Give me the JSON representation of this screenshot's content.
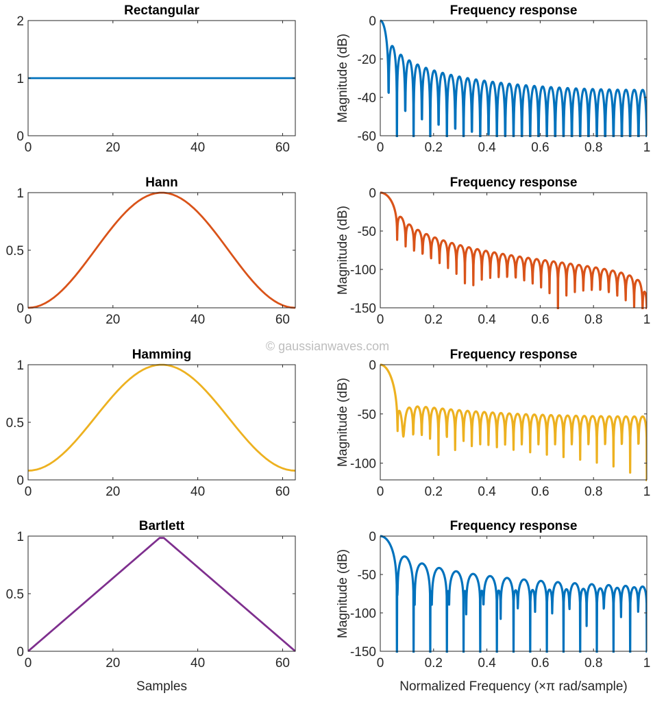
{
  "watermark": "© gaussianwaves.com",
  "chart_data": [
    {
      "type": "line",
      "title": "Rectangular",
      "xlabel": "",
      "ylabel": "",
      "xlim": [
        0,
        63
      ],
      "ylim": [
        0,
        2
      ],
      "xticks": [
        0,
        20,
        40,
        60
      ],
      "yticks": [
        0,
        1,
        2
      ],
      "color": "#0072BD",
      "series": {
        "window": "rectangular",
        "length": 64
      },
      "grid": false
    },
    {
      "type": "line",
      "title": "Frequency response",
      "xlabel": "",
      "ylabel": "Magnitude (dB)",
      "xlim": [
        0,
        1
      ],
      "ylim": [
        -60,
        0
      ],
      "xticks": [
        0,
        0.2,
        0.4,
        0.6,
        0.8,
        1
      ],
      "yticks": [
        0,
        -20,
        -40,
        -60
      ],
      "color": "#0072BD",
      "series": {
        "window": "rectangular",
        "length": 64,
        "quantity": "normalized magnitude response"
      },
      "grid": false
    },
    {
      "type": "line",
      "title": "Hann",
      "xlabel": "",
      "ylabel": "",
      "xlim": [
        0,
        63
      ],
      "ylim": [
        0,
        1
      ],
      "xticks": [
        0,
        20,
        40,
        60
      ],
      "yticks": [
        0,
        0.5,
        1
      ],
      "color": "#D95319",
      "series": {
        "window": "hann",
        "length": 64
      },
      "grid": false
    },
    {
      "type": "line",
      "title": "Frequency response",
      "xlabel": "",
      "ylabel": "Magnitude (dB)",
      "xlim": [
        0,
        1
      ],
      "ylim": [
        -150,
        0
      ],
      "xticks": [
        0,
        0.2,
        0.4,
        0.6,
        0.8,
        1
      ],
      "yticks": [
        0,
        -50,
        -100,
        -150
      ],
      "color": "#D95319",
      "series": {
        "window": "hann",
        "length": 64,
        "quantity": "normalized magnitude response"
      },
      "grid": false
    },
    {
      "type": "line",
      "title": "Hamming",
      "xlabel": "",
      "ylabel": "",
      "xlim": [
        0,
        63
      ],
      "ylim": [
        0,
        1
      ],
      "xticks": [
        0,
        20,
        40,
        60
      ],
      "yticks": [
        0,
        0.5,
        1
      ],
      "color": "#EDB120",
      "series": {
        "window": "hamming",
        "length": 64
      },
      "grid": false
    },
    {
      "type": "line",
      "title": "Frequency response",
      "xlabel": "",
      "ylabel": "Magnitude (dB)",
      "xlim": [
        0,
        1
      ],
      "ylim": [
        -117,
        0
      ],
      "xticks": [
        0,
        0.2,
        0.4,
        0.6,
        0.8,
        1
      ],
      "yticks": [
        0,
        -50,
        -100
      ],
      "color": "#EDB120",
      "series": {
        "window": "hamming",
        "length": 64,
        "quantity": "normalized magnitude response"
      },
      "grid": false
    },
    {
      "type": "line",
      "title": "Bartlett",
      "xlabel": "Samples",
      "ylabel": "",
      "xlim": [
        0,
        63
      ],
      "ylim": [
        0,
        1
      ],
      "xticks": [
        0,
        20,
        40,
        60
      ],
      "yticks": [
        0,
        0.5,
        1
      ],
      "color": "#7E2F8E",
      "series": {
        "window": "bartlett",
        "length": 64
      },
      "grid": false
    },
    {
      "type": "line",
      "title": "Frequency response",
      "xlabel": "Normalized Frequency (×π rad/sample)",
      "ylabel": "Magnitude (dB)",
      "xlim": [
        0,
        1
      ],
      "ylim": [
        -150,
        0
      ],
      "xticks": [
        0,
        0.2,
        0.4,
        0.6,
        0.8,
        1
      ],
      "yticks": [
        0,
        -50,
        -100,
        -150
      ],
      "color": "#0072BD",
      "series": {
        "window": "bartlett",
        "length": 64,
        "quantity": "normalized magnitude response"
      },
      "grid": false
    }
  ]
}
